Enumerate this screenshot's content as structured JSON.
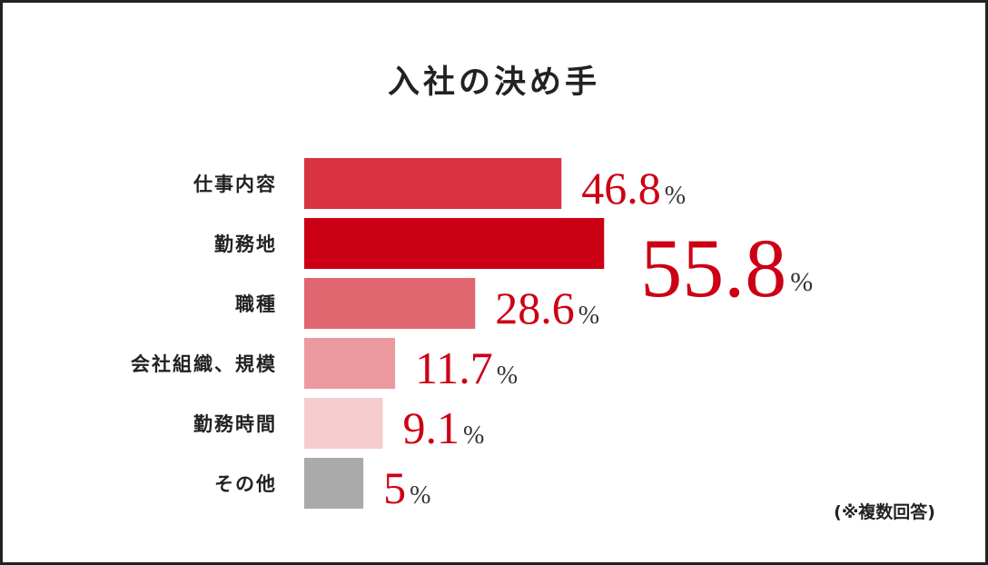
{
  "chart_data": {
    "type": "bar",
    "orientation": "horizontal",
    "title": "入社の決め手",
    "categories": [
      "仕事内容",
      "勤務地",
      "職種",
      "会社組織、規模",
      "勤務時間",
      "その他"
    ],
    "values": [
      46.8,
      55.8,
      28.6,
      11.7,
      9.1,
      5
    ],
    "value_labels": [
      "46.8%",
      "55.8%",
      "28.6%",
      "11.7%",
      "9.1%",
      "5%"
    ],
    "colors": [
      "#d93341",
      "#cc0015",
      "#e06670",
      "#eb999f",
      "#f5cccf",
      "#aaaaaa"
    ],
    "annotation": "(※複数回答)"
  }
}
